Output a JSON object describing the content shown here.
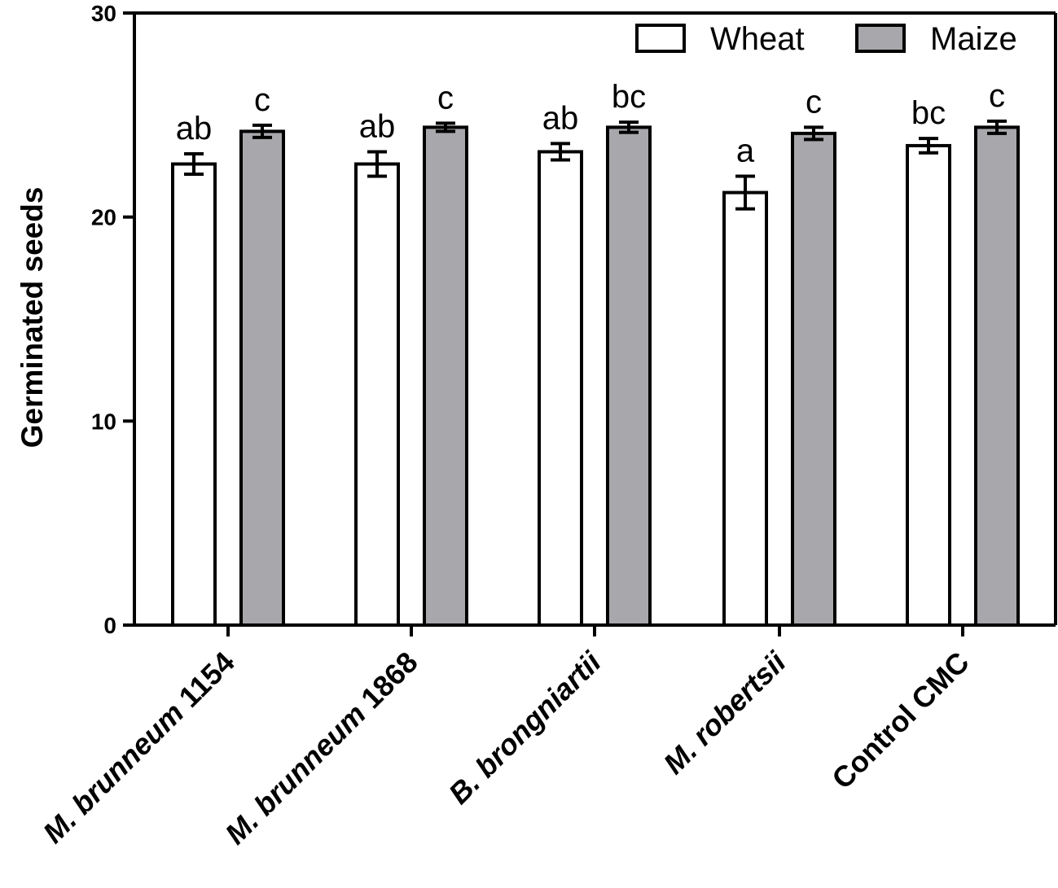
{
  "chart_data": {
    "type": "bar",
    "title": "",
    "xlabel": "",
    "ylabel": "Germinated seeds",
    "ylim": [
      0,
      30
    ],
    "yticks": [
      0,
      10,
      20,
      30
    ],
    "categories": [
      {
        "prefix": "",
        "italic": "M. brunneum",
        "suffix": " 1154"
      },
      {
        "prefix": "",
        "italic": "M. brunneum",
        "suffix": " 1868"
      },
      {
        "prefix": "",
        "italic": "B. brongniartii",
        "suffix": ""
      },
      {
        "prefix": "",
        "italic": "M. robertsii",
        "suffix": ""
      },
      {
        "prefix": "Control CMC",
        "italic": "",
        "suffix": ""
      }
    ],
    "series": [
      {
        "name": "Wheat",
        "color": "#ffffff",
        "values": [
          22.6,
          22.6,
          23.2,
          21.2,
          23.5
        ],
        "errors": [
          0.5,
          0.6,
          0.4,
          0.8,
          0.35
        ],
        "letters": [
          "ab",
          "ab",
          "ab",
          "a",
          "bc"
        ]
      },
      {
        "name": "Maize",
        "color": "#a8a8ac",
        "values": [
          24.2,
          24.4,
          24.4,
          24.1,
          24.4
        ],
        "errors": [
          0.3,
          0.2,
          0.25,
          0.3,
          0.3
        ],
        "letters": [
          "c",
          "c",
          "bc",
          "c",
          "c"
        ]
      }
    ],
    "legend": {
      "position": "top-right"
    }
  }
}
